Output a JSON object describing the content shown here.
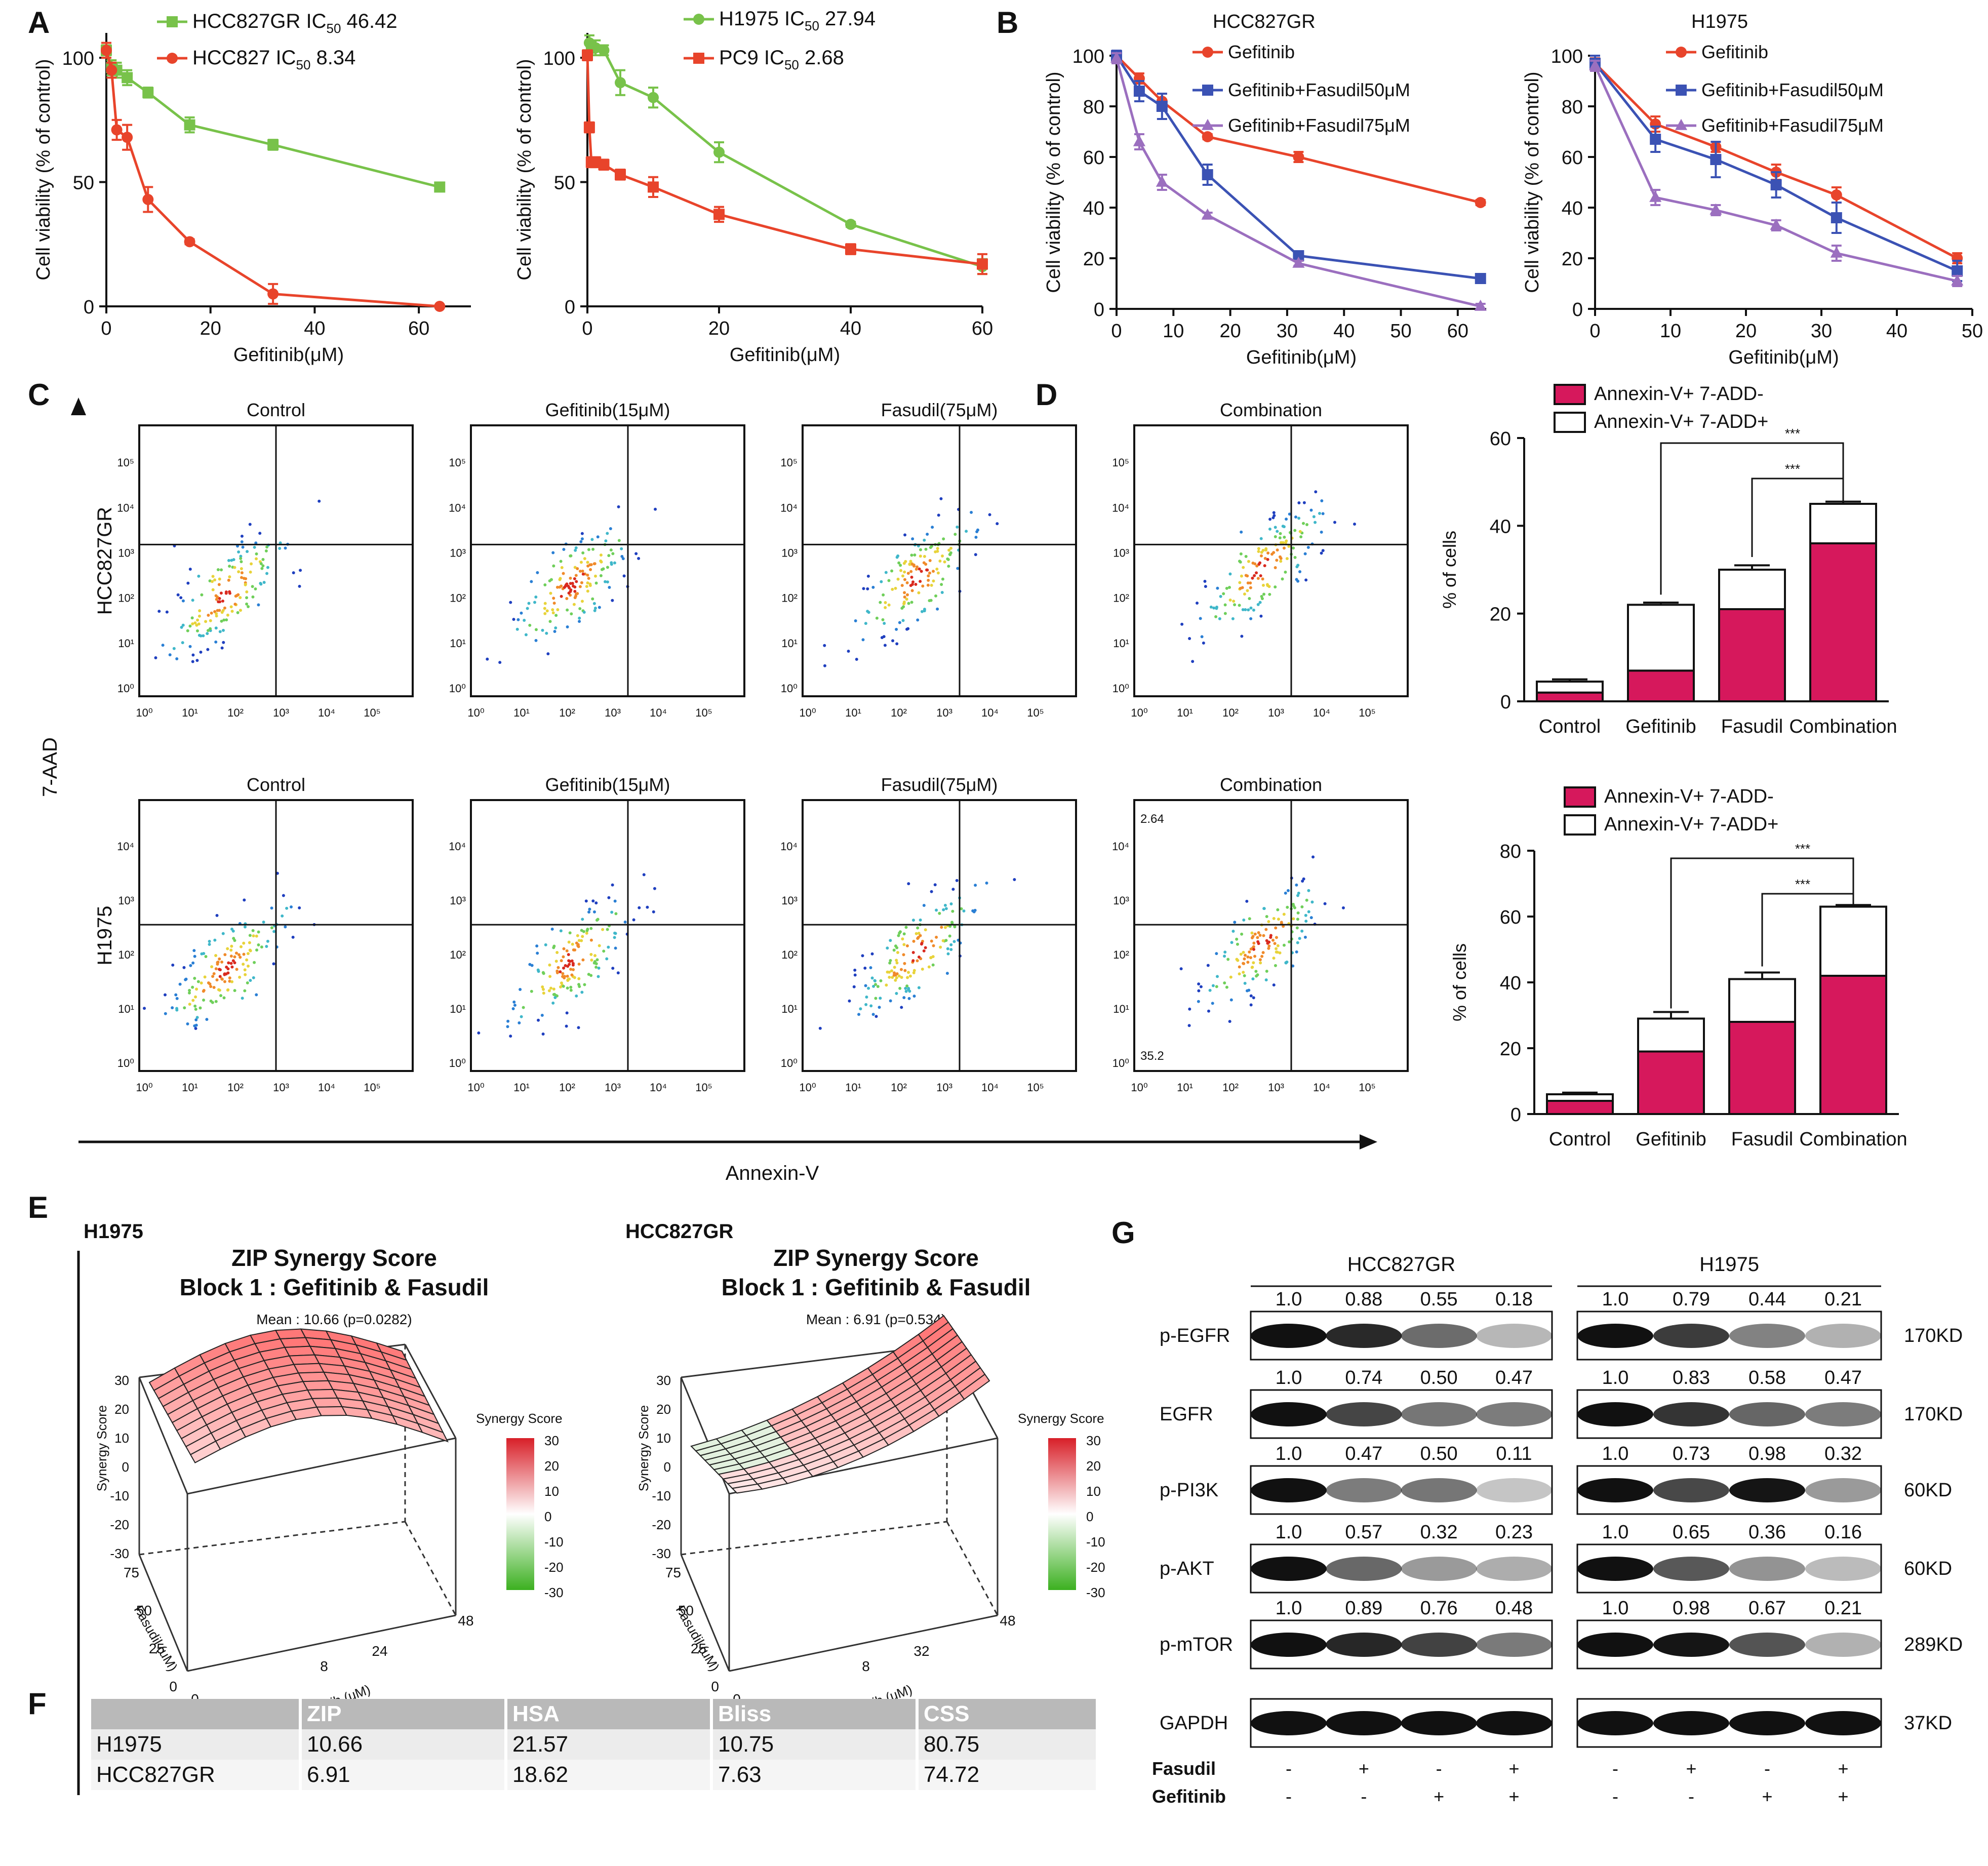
{
  "panel_letters": [
    "A",
    "B",
    "C",
    "D",
    "E",
    "F",
    "G"
  ],
  "colors": {
    "red": "#e8442b",
    "green": "#78c24a",
    "blue": "#3b52b4",
    "purple": "#9b6fbf",
    "magenta": "#d6185c"
  },
  "chart_data": [
    {
      "id": "A1",
      "type": "line",
      "title": "",
      "xlabel": "Gefitinib(μM)",
      "ylabel": "Cell viability (% of control)",
      "xlim": [
        0,
        70
      ],
      "ylim": [
        0,
        110
      ],
      "xticks": [
        0,
        20,
        40,
        60
      ],
      "yticks": [
        0,
        50,
        100
      ],
      "series": [
        {
          "name": "HCC827GR IC50 46.42",
          "legend_main": "HCC827GR IC",
          "legend_sub": "50",
          "legend_val": " 46.42",
          "color": "#78c24a",
          "marker": "square",
          "x": [
            0,
            1,
            2,
            4,
            8,
            16,
            32,
            64
          ],
          "y": [
            103,
            96,
            95,
            92,
            86,
            73,
            65,
            48
          ],
          "err": [
            2,
            3,
            3,
            3,
            2,
            3,
            2,
            1
          ]
        },
        {
          "name": "HCC827 IC50 8.34",
          "legend_main": "HCC827 IC",
          "legend_sub": "50",
          "legend_val": " 8.34",
          "color": "#e8442b",
          "marker": "circle",
          "x": [
            0,
            1,
            2,
            4,
            8,
            16,
            32,
            64
          ],
          "y": [
            103,
            95,
            71,
            68,
            43,
            26,
            5,
            0
          ],
          "err": [
            3,
            3,
            4,
            5,
            5,
            1,
            4,
            0
          ]
        }
      ]
    },
    {
      "id": "A2",
      "type": "line",
      "title": "",
      "xlabel": "Gefitinib(μM)",
      "ylabel": "Cell viability (% of control)",
      "xlim": [
        0,
        60
      ],
      "ylim": [
        0,
        110
      ],
      "xticks": [
        0,
        20,
        40,
        60
      ],
      "yticks": [
        0,
        50,
        100
      ],
      "series": [
        {
          "name": "H1975 IC50 27.94",
          "legend_main": "H1975 IC",
          "legend_sub": "50",
          "legend_val": " 27.94",
          "color": "#78c24a",
          "marker": "circle",
          "x": [
            0,
            0.3,
            0.6,
            1.25,
            2.5,
            5,
            10,
            20,
            40,
            60
          ],
          "y": [
            101,
            106,
            104,
            104,
            103,
            90,
            84,
            62,
            33,
            16
          ],
          "err": [
            2,
            3,
            2,
            3,
            2,
            5,
            4,
            4,
            1,
            3
          ]
        },
        {
          "name": "PC9 IC50 2.68",
          "legend_main": "PC9 IC",
          "legend_sub": "50",
          "legend_val": "  2.68",
          "color": "#e8442b",
          "marker": "square",
          "x": [
            0,
            0.3,
            0.6,
            1.25,
            2.5,
            5,
            10,
            20,
            40,
            60
          ],
          "y": [
            101,
            72,
            58,
            58,
            57,
            53,
            48,
            37,
            23,
            17
          ],
          "err": [
            2,
            2,
            2,
            2,
            2,
            2,
            4,
            3,
            2,
            4
          ]
        }
      ]
    },
    {
      "id": "B1",
      "type": "line",
      "title": "HCC827GR",
      "xlabel": "Gefitinib(μM)",
      "ylabel": "Cell viability (% of control)",
      "xlim": [
        0,
        65
      ],
      "ylim": [
        0,
        100
      ],
      "xticks": [
        0,
        10,
        20,
        30,
        40,
        50,
        60
      ],
      "yticks": [
        0,
        20,
        40,
        60,
        80,
        100
      ],
      "series": [
        {
          "name": "Gefitinib",
          "color": "#e8442b",
          "marker": "circle",
          "x": [
            0,
            4,
            8,
            16,
            32,
            64
          ],
          "y": [
            100,
            91,
            82,
            68,
            60,
            42
          ],
          "err": [
            2,
            2,
            3,
            1,
            2,
            1
          ]
        },
        {
          "name": "Gefitinib+Fasudil50μM",
          "color": "#3b52b4",
          "marker": "square",
          "x": [
            0,
            4,
            8,
            16,
            32,
            64
          ],
          "y": [
            100,
            86,
            80,
            53,
            21,
            12
          ],
          "err": [
            2,
            4,
            5,
            4,
            1,
            1
          ]
        },
        {
          "name": "Gefitinib+Fasudil75μM",
          "color": "#9b6fbf",
          "marker": "triangle",
          "x": [
            0,
            4,
            8,
            16,
            32,
            64
          ],
          "y": [
            99,
            66,
            50,
            37,
            18,
            1
          ],
          "err": [
            2,
            3,
            3,
            1,
            1,
            1
          ]
        }
      ]
    },
    {
      "id": "B2",
      "type": "line",
      "title": "H1975",
      "xlabel": "Gefitinib(μM)",
      "ylabel": "Cell viability (% of control)",
      "xlim": [
        0,
        50
      ],
      "ylim": [
        0,
        100
      ],
      "xticks": [
        0,
        10,
        20,
        30,
        40,
        50
      ],
      "yticks": [
        0,
        20,
        40,
        60,
        80,
        100
      ],
      "series": [
        {
          "name": "Gefitinib",
          "color": "#e8442b",
          "marker": "circle",
          "x": [
            0,
            8,
            16,
            24,
            32,
            48
          ],
          "y": [
            97,
            73,
            64,
            54,
            45,
            20
          ],
          "err": [
            2,
            3,
            2,
            3,
            3,
            2
          ]
        },
        {
          "name": "Gefitinib+Fasudil50μM",
          "color": "#3b52b4",
          "marker": "square",
          "x": [
            0,
            8,
            16,
            24,
            32,
            48
          ],
          "y": [
            97,
            67,
            59,
            49,
            36,
            15
          ],
          "err": [
            3,
            5,
            7,
            5,
            6,
            4
          ]
        },
        {
          "name": "Gefitinib+Fasudil75μM",
          "color": "#9b6fbf",
          "marker": "triangle",
          "x": [
            0,
            8,
            16,
            24,
            32,
            48
          ],
          "y": [
            96,
            44,
            39,
            33,
            22,
            11
          ],
          "err": [
            2,
            3,
            2,
            2,
            3,
            2
          ]
        }
      ]
    },
    {
      "id": "D1",
      "type": "bar",
      "stacked": true,
      "ylabel": "% of cells",
      "ylim": [
        0,
        60
      ],
      "yticks": [
        0,
        20,
        40,
        60
      ],
      "categories": [
        "Control",
        "Gefitinib",
        "Fasudil",
        "Combination"
      ],
      "series": [
        {
          "name": "Annexin-V+ 7-ADD-",
          "color": "#d6185c",
          "values": [
            2,
            7,
            21,
            36
          ],
          "err": [
            0.5,
            0.5,
            1,
            2
          ]
        },
        {
          "name": "Annexin-V+ 7-ADD+",
          "color": "#ffffff",
          "values": [
            2.5,
            15,
            9,
            9
          ],
          "err": [
            0.5,
            0.5,
            1,
            0.5
          ]
        }
      ],
      "significance": [
        "***",
        "***"
      ]
    },
    {
      "id": "D2",
      "type": "bar",
      "stacked": true,
      "ylabel": "% of cells",
      "ylim": [
        0,
        80
      ],
      "yticks": [
        0,
        20,
        40,
        60,
        80
      ],
      "categories": [
        "Control",
        "Gefitinib",
        "Fasudil",
        "Combination"
      ],
      "series": [
        {
          "name": "Annexin-V+ 7-ADD-",
          "color": "#d6185c",
          "values": [
            4,
            19,
            28,
            42
          ],
          "err": [
            0.5,
            1,
            2,
            0.5
          ]
        },
        {
          "name": "Annexin-V+ 7-ADD+",
          "color": "#ffffff",
          "values": [
            2,
            10,
            13,
            21
          ],
          "err": [
            0.5,
            2,
            2,
            0.5
          ]
        }
      ],
      "significance": [
        "***",
        "***"
      ]
    }
  ],
  "panel_c": {
    "conditions": [
      "Control",
      "Gefitinib(15μM)",
      "Fasudil(75μM)",
      "Combination"
    ],
    "rows": [
      "HCC827GR",
      "H1975"
    ],
    "y_axis": "7-AAD",
    "x_axis": "Annexin-V",
    "xticks": [
      "10⁰",
      "10¹",
      "10²",
      "10³",
      "10⁴",
      "10⁵"
    ],
    "yticks_row1": [
      "10⁰",
      "10¹",
      "10²",
      "10³",
      "10⁴",
      "10⁵"
    ],
    "yticks_row2": [
      "10⁰",
      "10¹",
      "10²",
      "10³",
      "10⁴"
    ],
    "quad_labels": {
      "ul": "2.64",
      "ll": "35.2"
    }
  },
  "panel_e": {
    "plots": [
      {
        "cell": "H1975",
        "title1": "ZIP Synergy Score",
        "title2": "Block 1 : Gefitinib & Fasudil",
        "mean": "Mean : 10.66 (p=0.0282)",
        "xticks": [
          "0",
          "8",
          "24",
          "48"
        ]
      },
      {
        "cell": "HCC827GR",
        "title1": "ZIP Synergy Score",
        "title2": "Block 1 : Gefitinib & Fasudil",
        "mean": "Mean : 6.91 (p=0.534)",
        "xticks": [
          "0",
          "8",
          "32",
          "48"
        ]
      }
    ],
    "zlabel": "Synergy Score",
    "ylabel": "Fasudil (uM)",
    "xlabel": "Gefitinib (uM)",
    "yticks": [
      "0",
      "25",
      "50",
      "75"
    ],
    "zticks": [
      "30",
      "20",
      "10",
      "0",
      "-10",
      "-20",
      "-30"
    ],
    "legend_title": "Synergy Score",
    "legend_ticks": [
      "30",
      "20",
      "10",
      "0",
      "-10",
      "-20",
      "-30"
    ]
  },
  "panel_f": {
    "headers": [
      "",
      "ZIP",
      "HSA",
      "Bliss",
      "CSS"
    ],
    "rows": [
      [
        "H1975",
        "10.66",
        "21.57",
        "10.75",
        "80.75"
      ],
      [
        "HCC827GR",
        "6.91",
        "18.62",
        "7.63",
        "74.72"
      ]
    ]
  },
  "panel_g": {
    "groups": [
      "HCC827GR",
      "H1975"
    ],
    "proteins": [
      {
        "name": "p-EGFR",
        "kd": "170KD",
        "left": [
          "1.0",
          "0.88",
          "0.55",
          "0.18"
        ],
        "right": [
          "1.0",
          "0.79",
          "0.44",
          "0.21"
        ],
        "lint": [
          1,
          0.88,
          0.55,
          0.18
        ],
        "rint": [
          1,
          0.79,
          0.44,
          0.21
        ]
      },
      {
        "name": "EGFR",
        "kd": "170KD",
        "left": [
          "1.0",
          "0.74",
          "0.50",
          "0.47"
        ],
        "right": [
          "1.0",
          "0.83",
          "0.58",
          "0.47"
        ],
        "lint": [
          1,
          0.74,
          0.5,
          0.47
        ],
        "rint": [
          1,
          0.83,
          0.58,
          0.47
        ]
      },
      {
        "name": "p-PI3K",
        "kd": "60KD",
        "left": [
          "1.0",
          "0.47",
          "0.50",
          "0.11"
        ],
        "right": [
          "1.0",
          "0.73",
          "0.98",
          "0.32"
        ],
        "lint": [
          1,
          0.47,
          0.5,
          0.11
        ],
        "rint": [
          1,
          0.73,
          0.98,
          0.32
        ]
      },
      {
        "name": "p-AKT",
        "kd": "60KD",
        "left": [
          "1.0",
          "0.57",
          "0.32",
          "0.23"
        ],
        "right": [
          "1.0",
          "0.65",
          "0.36",
          "0.16"
        ],
        "lint": [
          1,
          0.57,
          0.32,
          0.23
        ],
        "rint": [
          1,
          0.65,
          0.36,
          0.16
        ]
      },
      {
        "name": "p-mTOR",
        "kd": "289KD",
        "left": [
          "1.0",
          "0.89",
          "0.76",
          "0.48"
        ],
        "right": [
          "1.0",
          "0.98",
          "0.67",
          "0.21"
        ],
        "lint": [
          1,
          0.89,
          0.76,
          0.48
        ],
        "rint": [
          1,
          0.98,
          0.67,
          0.21
        ]
      },
      {
        "name": "GAPDH",
        "kd": "37KD",
        "left": [],
        "right": [],
        "lint": [
          1,
          1,
          1,
          1
        ],
        "rint": [
          1,
          1,
          1,
          1
        ]
      }
    ],
    "treatments": [
      {
        "name": "Fasudil",
        "signs": [
          "-",
          "+",
          "-",
          "+"
        ]
      },
      {
        "name": "Gefitinib",
        "signs": [
          "-",
          "-",
          "+",
          "+"
        ]
      }
    ]
  }
}
